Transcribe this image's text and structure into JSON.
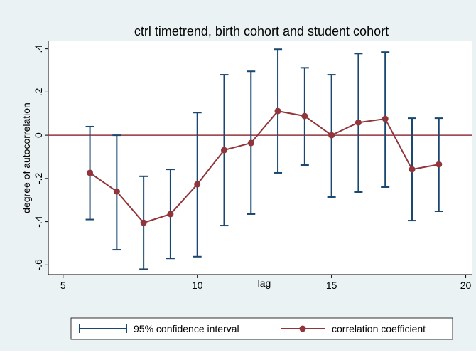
{
  "chart_data": {
    "type": "errorbar-line",
    "title": "ctrl timetrend, birth cohort and student cohort",
    "xlabel": "lag",
    "ylabel": "degree of autocorrelation",
    "x": [
      6,
      7,
      8,
      9,
      10,
      11,
      12,
      13,
      14,
      15,
      16,
      17,
      18,
      19
    ],
    "series": [
      {
        "name": "95% confidence interval",
        "color": "#1a476f",
        "lower": [
          -0.39,
          -0.53,
          -0.62,
          -0.57,
          -0.562,
          -0.418,
          -0.365,
          -0.174,
          -0.138,
          -0.286,
          -0.263,
          -0.24,
          -0.395,
          -0.352
        ],
        "upper": [
          0.04,
          0.0,
          -0.19,
          -0.158,
          0.105,
          0.28,
          0.296,
          0.398,
          0.312,
          0.28,
          0.378,
          0.385,
          0.079,
          0.079
        ]
      },
      {
        "name": "correlation coefficient",
        "color": "#90353b",
        "values": [
          -0.174,
          -0.26,
          -0.405,
          -0.365,
          -0.227,
          -0.069,
          -0.036,
          0.112,
          0.089,
          0,
          0.059,
          0.076,
          -0.158,
          -0.135
        ]
      }
    ],
    "reference_line": {
      "value": 0,
      "color": "#90353b"
    },
    "xlim": [
      4.45,
      20.25
    ],
    "xticks": [
      5,
      10,
      15,
      20
    ],
    "ylim": [
      -0.645,
      0.435
    ],
    "yticks": [
      {
        "value": -0.6,
        "label": "-.6"
      },
      {
        "value": -0.4,
        "label": "-.4"
      },
      {
        "value": -0.2,
        "label": "-.2"
      },
      0,
      {
        "value": 0.2,
        "label": ".2"
      },
      {
        "value": 0.4,
        "label": ".4"
      }
    ]
  }
}
